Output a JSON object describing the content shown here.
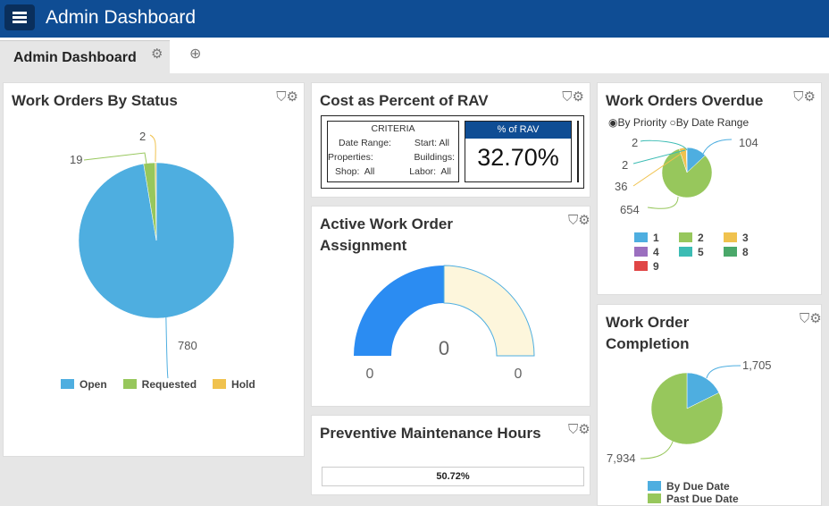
{
  "header": {
    "title": "Admin Dashboard",
    "menu_icon": "hamburger-icon"
  },
  "tabs": [
    {
      "label": "Admin Dashboard"
    }
  ],
  "add_widget_icon": "add-widget-icon",
  "widgets": {
    "status": {
      "title": "Work Orders By Status",
      "labels": [
        "780",
        "19",
        "2"
      ],
      "legend": [
        {
          "label": "Open",
          "color": "#4eaee0"
        },
        {
          "label": "Requested",
          "color": "#97c75c"
        },
        {
          "label": "Hold",
          "color": "#f0c24e"
        }
      ],
      "values": [
        780,
        19,
        2
      ]
    },
    "rav": {
      "title": "Cost as Percent of RAV",
      "criteria_title": "CRITERIA",
      "date_range": "Date Range:",
      "start": "Start: All",
      "properties": "Properties:",
      "buildings": "Buildings:",
      "shop": "Shop:  All",
      "labor": "Labor:  All",
      "kpi_label": "% of RAV",
      "kpi_value": "32.70%"
    },
    "assign": {
      "title": "Active Work Order Assignment",
      "value": "0",
      "min": "0",
      "max": "0",
      "colors": [
        "#2b8cf2",
        "#fdf6dc"
      ]
    },
    "pm": {
      "title": "Preventive Maintenance Hours",
      "progress": "50.72%",
      "progress_value": 50.72
    },
    "overdue": {
      "title": "Work Orders Overdue",
      "radio": [
        {
          "label": "By Priority",
          "checked": true
        },
        {
          "label": "By Date Range",
          "checked": false
        }
      ],
      "slices": [
        {
          "label": "1",
          "value": 104,
          "color": "#4eaee0"
        },
        {
          "label": "2",
          "value": 654,
          "color": "#97c75c"
        },
        {
          "label": "3",
          "value": 36,
          "color": "#f0c24e"
        },
        {
          "label": "4",
          "value": 2,
          "color": "#9b6fbf"
        },
        {
          "label": "5",
          "value": 2,
          "color": "#3cbcb4"
        }
      ],
      "data_labels": [
        "104",
        "654",
        "36",
        "2",
        "2"
      ],
      "legend": [
        {
          "label": "1",
          "color": "#4eaee0"
        },
        {
          "label": "2",
          "color": "#97c75c"
        },
        {
          "label": "3",
          "color": "#f0c24e"
        },
        {
          "label": "4",
          "color": "#9b6fbf"
        },
        {
          "label": "5",
          "color": "#3cbcb4"
        },
        {
          "label": "8",
          "color": "#4aa86a"
        },
        {
          "label": "9",
          "color": "#e04646"
        }
      ]
    },
    "completion": {
      "title": "Work Order Completion",
      "values": [
        1705,
        7934
      ],
      "data_labels": [
        "1,705",
        "7,934"
      ],
      "legend": [
        {
          "label": "By Due Date",
          "color": "#4eaee0"
        },
        {
          "label": "Past Due Date",
          "color": "#97c75c"
        }
      ]
    }
  }
}
